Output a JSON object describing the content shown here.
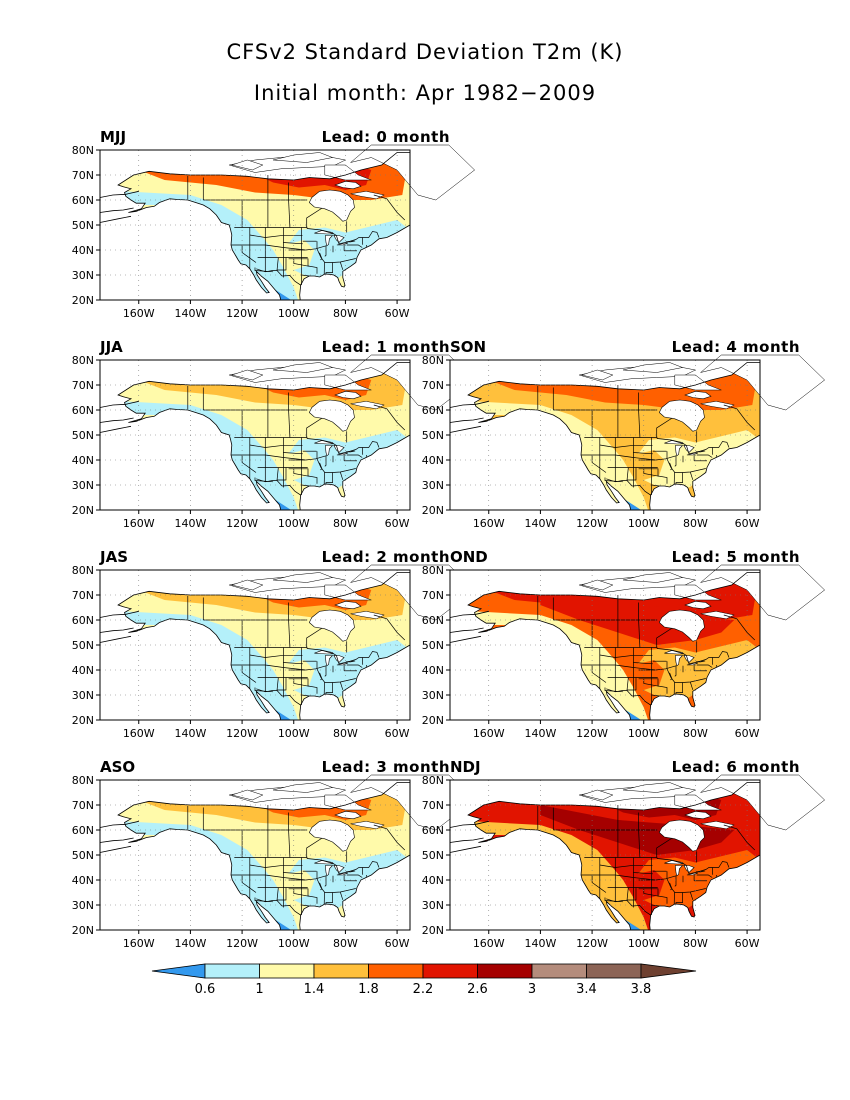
{
  "title": "CFSv2 Standard Deviation T2m (K)",
  "subtitle": "Initial month: Apr 1982−2009",
  "y_ticks": [
    "80N",
    "70N",
    "60N",
    "50N",
    "40N",
    "30N",
    "20N"
  ],
  "x_ticks": [
    "160W",
    "140W",
    "120W",
    "100W",
    "80W",
    "60W"
  ],
  "colors": {
    "ocean": "#ffffff",
    "c_lt06": "#3399ee",
    "c_06_1": "#b4f0fa",
    "c_1_14": "#fffaaa",
    "c_14_18": "#ffc03c",
    "c_18_22": "#ff6000",
    "c_22_26": "#e11400",
    "c_26_3": "#a50000",
    "c_3_34": "#b48c7c",
    "c_34_38": "#8c6456",
    "c_gt38": "#6e4030",
    "lake": "#ffffff",
    "border": "#000000"
  },
  "panels": [
    {
      "season": "MJJ",
      "lead": "Lead: 0 month",
      "intensity": 1
    },
    {
      "season": "JJA",
      "lead": "Lead: 1 month",
      "intensity": 0
    },
    {
      "season": "SON",
      "lead": "Lead: 4 month",
      "intensity": 2
    },
    {
      "season": "JAS",
      "lead": "Lead: 2 month",
      "intensity": 0
    },
    {
      "season": "OND",
      "lead": "Lead: 5 month",
      "intensity": 3
    },
    {
      "season": "ASO",
      "lead": "Lead: 3 month",
      "intensity": 0
    },
    {
      "season": "NDJ",
      "lead": "Lead: 6 month",
      "intensity": 4
    }
  ],
  "colorbar": {
    "labels": [
      "0.6",
      "1",
      "1.4",
      "1.8",
      "2.2",
      "2.6",
      "3",
      "3.4",
      "3.8"
    ],
    "colors": [
      "#3399ee",
      "#b4f0fa",
      "#fffaaa",
      "#ffc03c",
      "#ff6000",
      "#e11400",
      "#a50000",
      "#b48c7c",
      "#8c6456",
      "#6e4030"
    ]
  }
}
